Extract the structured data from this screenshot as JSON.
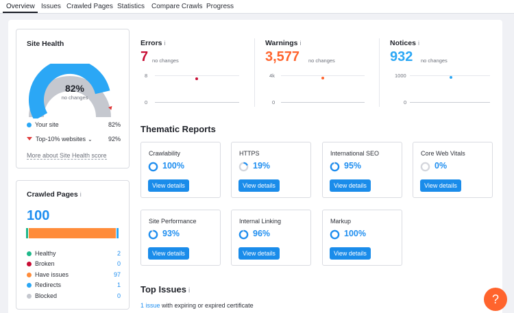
{
  "tabs": [
    "Overview",
    "Issues",
    "Crawled Pages",
    "Statistics",
    "Compare Crawls",
    "Progress"
  ],
  "site_health": {
    "title": "Site Health",
    "percent": 82,
    "percent_text": "82%",
    "change_text": "no changes",
    "your_site_label": "Your site",
    "your_site_value": "82%",
    "top10_label": "Top-10% websites",
    "top10_value": "92%",
    "more_link": "More about Site Health score",
    "colors": {
      "site": "#2ba7f5",
      "rest": "#c5c8cf",
      "marker": "#e03a3a"
    }
  },
  "crawled_pages": {
    "title": "Crawled Pages",
    "total": "100",
    "rows": [
      {
        "label": "Healthy",
        "value": "2",
        "color": "#1fb88a"
      },
      {
        "label": "Broken",
        "value": "0",
        "color": "#c80d34"
      },
      {
        "label": "Have issues",
        "value": "97",
        "color": "#ff8c3a"
      },
      {
        "label": "Redirects",
        "value": "1",
        "color": "#2ba7f5"
      },
      {
        "label": "Blocked",
        "value": "0",
        "color": "#c5c8cf"
      }
    ]
  },
  "errors": {
    "label": "Errors",
    "value": "7",
    "change": "no changes",
    "y_top": "8",
    "y_bottom": "0",
    "color": "#c80d34"
  },
  "warnings": {
    "label": "Warnings",
    "value": "3,577",
    "change": "no changes",
    "y_top": "4k",
    "y_bottom": "0",
    "color": "#ff642d"
  },
  "notices": {
    "label": "Notices",
    "value": "932",
    "change": "no changes",
    "y_top": "1000",
    "y_bottom": "0",
    "color": "#2ba7f5"
  },
  "thematic": {
    "title": "Thematic Reports",
    "button_label": "View details",
    "reports": [
      {
        "name": "Crawlability",
        "percent_text": "100%",
        "percent": 100
      },
      {
        "name": "HTTPS",
        "percent_text": "19%",
        "percent": 19
      },
      {
        "name": "International SEO",
        "percent_text": "95%",
        "percent": 95
      },
      {
        "name": "Core Web Vitals",
        "percent_text": "0%",
        "percent": 0
      },
      {
        "name": "Site Performance",
        "percent_text": "93%",
        "percent": 93
      },
      {
        "name": "Internal Linking",
        "percent_text": "96%",
        "percent": 96
      },
      {
        "name": "Markup",
        "percent_text": "100%",
        "percent": 100
      }
    ]
  },
  "top_issues": {
    "title": "Top Issues",
    "link_text": "1 issue",
    "rest_text": " with expiring or expired certificate"
  },
  "help": {
    "label": "?"
  }
}
